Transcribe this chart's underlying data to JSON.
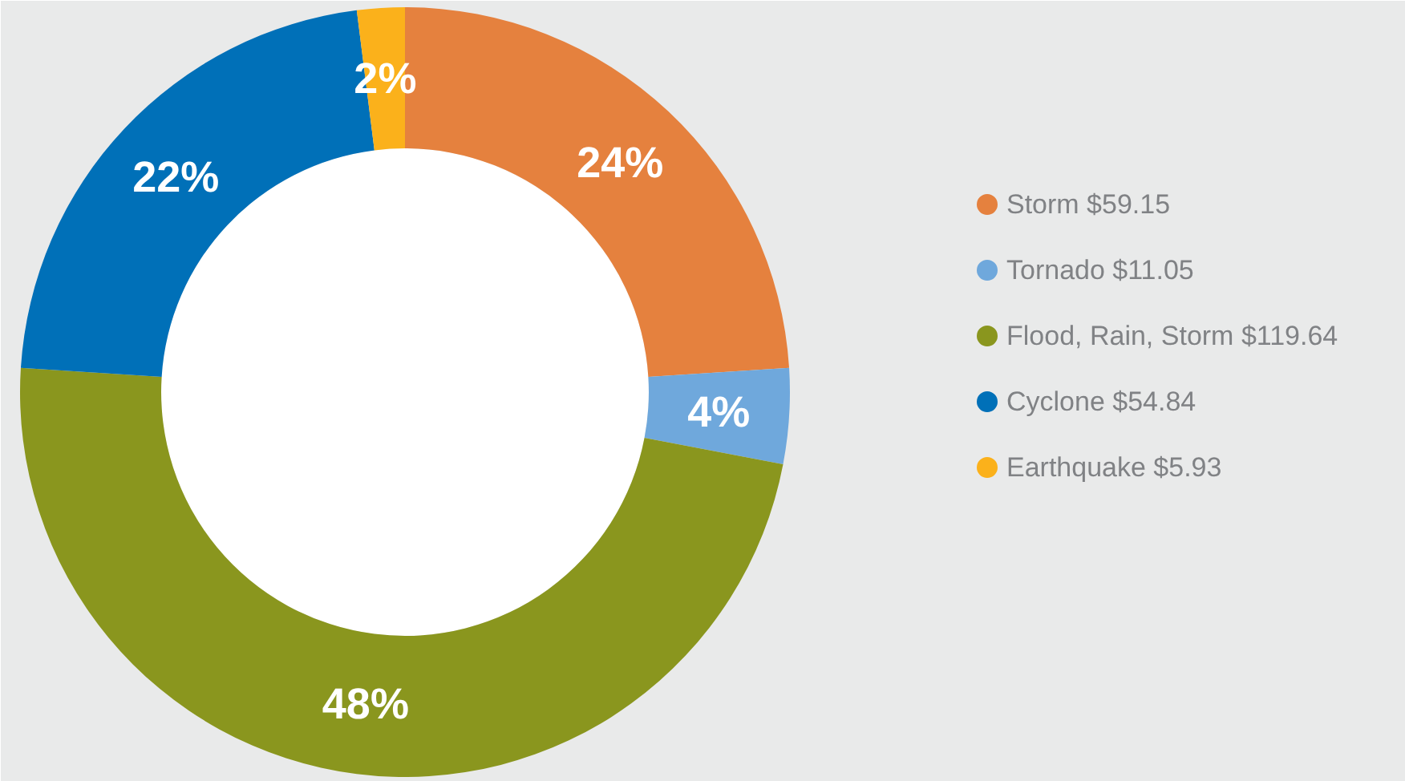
{
  "chart_data": {
    "type": "donut",
    "categories": [
      "Storm $59.15",
      "Tornado $11.05",
      "Flood, Rain, Storm $119.64",
      "Cyclone $54.84",
      "Earthquake $5.93"
    ],
    "values": [
      24,
      4,
      48,
      22,
      2
    ],
    "colors": [
      "#e5813e",
      "#6fa8dc",
      "#8a961e",
      "#0070b8",
      "#fbb11b"
    ],
    "value_labels": [
      "24%",
      "4%",
      "48%",
      "22%",
      "2%"
    ],
    "legend": "right"
  }
}
